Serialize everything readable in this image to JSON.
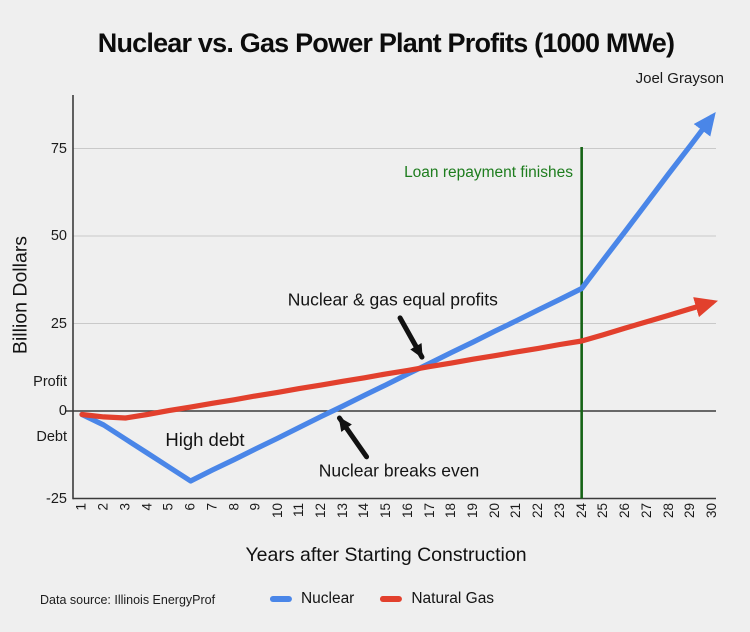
{
  "header": {
    "author": "Joel Grayson"
  },
  "chart_data": {
    "type": "line",
    "title": "Nuclear vs. Gas Power Plant Profits (1000 MWe)",
    "xlabel": "Years after Starting Construction",
    "ylabel": "Billion Dollars",
    "xlim": [
      1,
      30
    ],
    "ylim": [
      -25,
      90
    ],
    "grid": true,
    "legend_position": "bottom",
    "x": [
      1,
      2,
      3,
      4,
      5,
      6,
      7,
      8,
      9,
      10,
      11,
      12,
      13,
      14,
      15,
      16,
      17,
      18,
      19,
      20,
      21,
      22,
      23,
      24,
      25,
      26,
      27,
      28,
      29,
      30
    ],
    "y_ticks": [
      75,
      50,
      25,
      0,
      -25
    ],
    "y_axis_zone_labels": {
      "profit": "Profit",
      "debt": "Debt"
    },
    "series": [
      {
        "name": "Nuclear",
        "color": "#4a86e8",
        "values": [
          -1,
          -4,
          -8,
          -12,
          -16,
          -20,
          -16.9,
          -13.9,
          -10.8,
          -7.8,
          -4.7,
          -1.6,
          1.4,
          4.5,
          7.5,
          10.6,
          13.6,
          16.7,
          19.7,
          22.8,
          25.8,
          28.9,
          31.9,
          35,
          43.2,
          51.3,
          59.5,
          67.7,
          75.8,
          84
        ]
      },
      {
        "name": "Natural Gas",
        "color": "#e2402d",
        "values": [
          -1,
          -1.7,
          -2,
          -1,
          0.1,
          1.1,
          2.2,
          3.2,
          4.3,
          5.3,
          6.4,
          7.4,
          8.5,
          9.5,
          10.6,
          11.6,
          12.7,
          13.7,
          14.8,
          15.8,
          16.9,
          17.9,
          19,
          20,
          21.8,
          23.7,
          25.5,
          27.3,
          29.2,
          31
        ]
      }
    ],
    "reference_line": {
      "x_year": 24,
      "color": "#156315"
    },
    "annotations": [
      {
        "id": "loan-repayment-finishes",
        "text": "Loan repayment finishes",
        "year": 23.6,
        "value": 68,
        "align": "right",
        "color": "#1e7d1e"
      },
      {
        "id": "equal-profits",
        "text": "Nuclear & gas equal profits",
        "year": 15.31,
        "value": 31.7,
        "align": "center"
      },
      {
        "id": "high-debt",
        "text": "High debt",
        "year": 6.66,
        "value": -8.3,
        "align": "center"
      },
      {
        "id": "breaks-even",
        "text": "Nuclear breaks even",
        "year": 15.59,
        "value": -17.1,
        "align": "center"
      }
    ],
    "arrows": [
      {
        "id": "equal-profits-arrow",
        "from": {
          "year": 15.64,
          "value": 26.6
        },
        "to": {
          "year": 16.65,
          "value": 15.4
        }
      },
      {
        "id": "breaks-even-arrow",
        "from": {
          "year": 14.1,
          "value": -13.1
        },
        "to": {
          "year": 12.85,
          "value": -2.0
        }
      }
    ],
    "legend": [
      {
        "label": "Nuclear",
        "color": "#4a86e8"
      },
      {
        "label": "Natural Gas",
        "color": "#e2402d"
      }
    ]
  },
  "footer": {
    "source": "Data source: Illinois EnergyProf"
  }
}
